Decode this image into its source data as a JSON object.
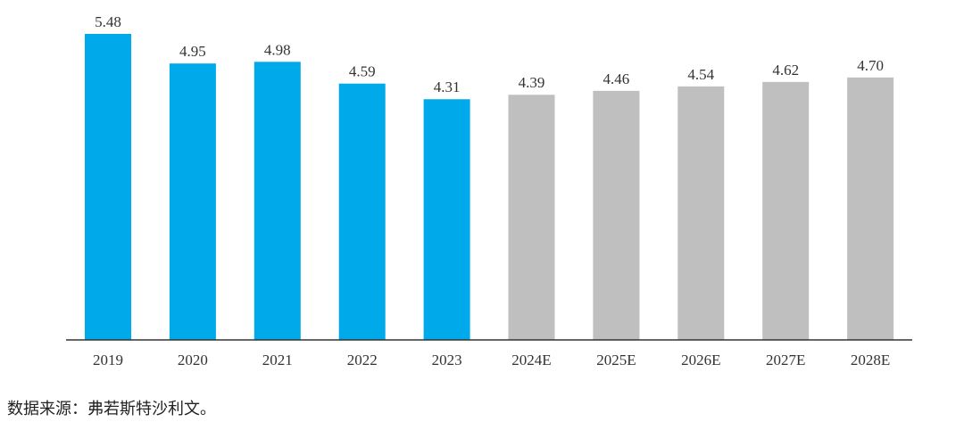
{
  "chart_data": {
    "type": "bar",
    "categories": [
      "2019",
      "2020",
      "2021",
      "2022",
      "2023",
      "2024E",
      "2025E",
      "2026E",
      "2027E",
      "2028E"
    ],
    "values": [
      5.48,
      4.95,
      4.98,
      4.59,
      4.31,
      4.39,
      4.46,
      4.54,
      4.62,
      4.7
    ],
    "value_labels": [
      "5.48",
      "4.95",
      "4.98",
      "4.59",
      "4.31",
      "4.39",
      "4.46",
      "4.54",
      "4.62",
      "4.70"
    ],
    "ylim": [
      0,
      5.48
    ],
    "title": "",
    "xlabel": "",
    "ylabel": "",
    "grid": false,
    "colors": {
      "actual": "#00A9EA",
      "estimate": "#BFBFBF"
    },
    "bar_color_keys": [
      "actual",
      "actual",
      "actual",
      "actual",
      "actual",
      "estimate",
      "estimate",
      "estimate",
      "estimate",
      "estimate"
    ]
  },
  "source": "数据来源：弗若斯特沙利文。"
}
